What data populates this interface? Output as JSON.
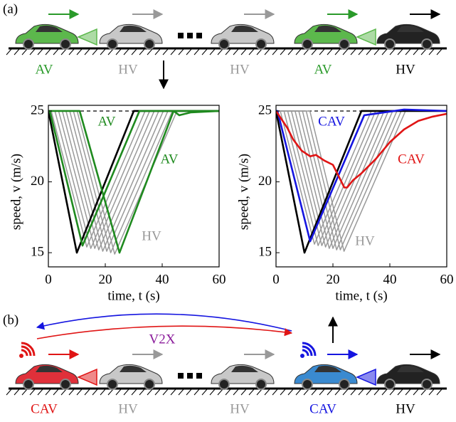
{
  "panels": {
    "a": "(a)",
    "b": "(b)"
  },
  "top_row": {
    "labels": [
      {
        "text": "AV",
        "color": "#2a9a2a"
      },
      {
        "text": "HV",
        "color": "#999999"
      },
      {
        "text": "HV",
        "color": "#999999"
      },
      {
        "text": "AV",
        "color": "#2a9a2a"
      },
      {
        "text": "HV",
        "color": "#000000"
      }
    ]
  },
  "bottom_row": {
    "labels": [
      {
        "text": "CAV",
        "color": "#e01515"
      },
      {
        "text": "HV",
        "color": "#999999"
      },
      {
        "text": "HV",
        "color": "#999999"
      },
      {
        "text": "CAV",
        "color": "#1515e0"
      },
      {
        "text": "HV",
        "color": "#000000"
      }
    ],
    "link": "V2X"
  },
  "chart_data": [
    {
      "type": "line",
      "x_label": "time, t (s)",
      "y_label": "speed, v (m/s)",
      "xlim": [
        0,
        60
      ],
      "ylim": [
        14,
        25.4
      ],
      "xticks": [
        0,
        20,
        40,
        60
      ],
      "yticks": [
        15,
        20,
        25
      ],
      "hlines": [
        25
      ],
      "series": [
        {
          "color": "#999999",
          "x": [
            0,
            1,
            13.5,
            34,
            60
          ],
          "values": [
            25,
            25,
            15.4,
            25,
            25
          ]
        },
        {
          "color": "#999999",
          "x": [
            0,
            2.3,
            14.9,
            35.6,
            60
          ],
          "values": [
            25,
            25,
            15.3,
            25,
            25
          ]
        },
        {
          "color": "#999999",
          "x": [
            0,
            3.6,
            16.3,
            37.2,
            60
          ],
          "values": [
            25,
            25,
            15.3,
            25,
            25
          ]
        },
        {
          "color": "#999999",
          "x": [
            0,
            4.9,
            17.7,
            38.8,
            60
          ],
          "values": [
            25,
            25,
            15.2,
            25,
            25
          ]
        },
        {
          "color": "#999999",
          "x": [
            0,
            6.2,
            19.1,
            40.4,
            60
          ],
          "values": [
            25,
            25,
            15.1,
            25,
            25
          ]
        },
        {
          "color": "#999999",
          "x": [
            0,
            7.5,
            20.5,
            42,
            60
          ],
          "values": [
            25,
            25,
            15.1,
            25,
            25
          ]
        },
        {
          "color": "#999999",
          "x": [
            0,
            8.8,
            21.9,
            43.6,
            60
          ],
          "values": [
            25,
            25,
            15,
            25,
            25
          ]
        },
        {
          "color": "#999999",
          "x": [
            0,
            10.1,
            23.3,
            45.2,
            60
          ],
          "values": [
            25,
            25,
            14.9,
            25,
            25
          ]
        },
        {
          "color": "#000000",
          "x": [
            0,
            10,
            30,
            60
          ],
          "values": [
            25,
            15,
            25,
            25
          ]
        },
        {
          "color": "#1f8a1f",
          "x": [
            0,
            0.5,
            12,
            32,
            60
          ],
          "values": [
            25,
            25,
            15.5,
            25,
            25
          ]
        },
        {
          "color": "#1f8a1f",
          "x": [
            0,
            11,
            25,
            44,
            46,
            50,
            60
          ],
          "values": [
            25,
            25,
            15,
            25,
            24.7,
            24.9,
            25
          ]
        }
      ],
      "annotations": [
        {
          "text": "AV",
          "color": "#1f8a1f"
        },
        {
          "text": "AV",
          "color": "#1f8a1f"
        },
        {
          "text": "HV",
          "color": "#999999"
        }
      ]
    },
    {
      "type": "line",
      "x_label": "time, t (s)",
      "y_label": "speed, v (m/s)",
      "xlim": [
        0,
        60
      ],
      "ylim": [
        14,
        25.4
      ],
      "xticks": [
        0,
        20,
        40,
        60
      ],
      "yticks": [
        15,
        20,
        25
      ],
      "hlines": [
        25
      ],
      "series": [
        {
          "color": "#999999",
          "x": [
            0,
            1.5,
            13.5,
            33.5,
            60
          ],
          "values": [
            25,
            25,
            15.6,
            25,
            25
          ]
        },
        {
          "color": "#999999",
          "x": [
            0,
            2.8,
            14.8,
            35,
            60
          ],
          "values": [
            25,
            25,
            15.5,
            25,
            25
          ]
        },
        {
          "color": "#999999",
          "x": [
            0,
            4.1,
            16.1,
            36.5,
            60
          ],
          "values": [
            25,
            25,
            15.5,
            25,
            25
          ]
        },
        {
          "color": "#999999",
          "x": [
            0,
            5.4,
            17.4,
            38,
            60
          ],
          "values": [
            25,
            25,
            15.4,
            25,
            25
          ]
        },
        {
          "color": "#999999",
          "x": [
            0,
            6.7,
            18.7,
            39.5,
            60
          ],
          "values": [
            25,
            25,
            15.3,
            25,
            25
          ]
        },
        {
          "color": "#999999",
          "x": [
            0,
            8,
            20,
            41,
            60
          ],
          "values": [
            25,
            25,
            15.3,
            25,
            25
          ]
        },
        {
          "color": "#999999",
          "x": [
            0,
            9.3,
            21.3,
            42.5,
            60
          ],
          "values": [
            25,
            25,
            15.2,
            25,
            25
          ]
        },
        {
          "color": "#999999",
          "x": [
            0,
            10.6,
            22.6,
            44,
            60
          ],
          "values": [
            25,
            25,
            15.2,
            25,
            25
          ]
        },
        {
          "color": "#999999",
          "x": [
            0,
            11.9,
            23.9,
            45.5,
            60
          ],
          "values": [
            25,
            25,
            15.1,
            25,
            25
          ]
        },
        {
          "color": "#000000",
          "x": [
            0,
            10,
            30,
            60
          ],
          "values": [
            25,
            15,
            25,
            25
          ]
        },
        {
          "color": "#1515e0",
          "x": [
            0,
            0.5,
            12,
            31,
            45,
            60
          ],
          "values": [
            25,
            25,
            15.8,
            24.7,
            25.1,
            25
          ]
        },
        {
          "color": "#e01515",
          "x": [
            0,
            4,
            6,
            9,
            12,
            14,
            17,
            20,
            24,
            25,
            27,
            30,
            35,
            40,
            45,
            50,
            55,
            60
          ],
          "values": [
            25,
            23.8,
            23,
            22.2,
            21.8,
            21.9,
            21.5,
            21.2,
            19.6,
            19.6,
            20.1,
            20.6,
            21.6,
            22.8,
            23.7,
            24.3,
            24.6,
            24.8
          ]
        }
      ],
      "annotations": [
        {
          "text": "CAV",
          "color": "#1515e0"
        },
        {
          "text": "CAV",
          "color": "#e01515"
        },
        {
          "text": "HV",
          "color": "#999999"
        }
      ]
    }
  ]
}
